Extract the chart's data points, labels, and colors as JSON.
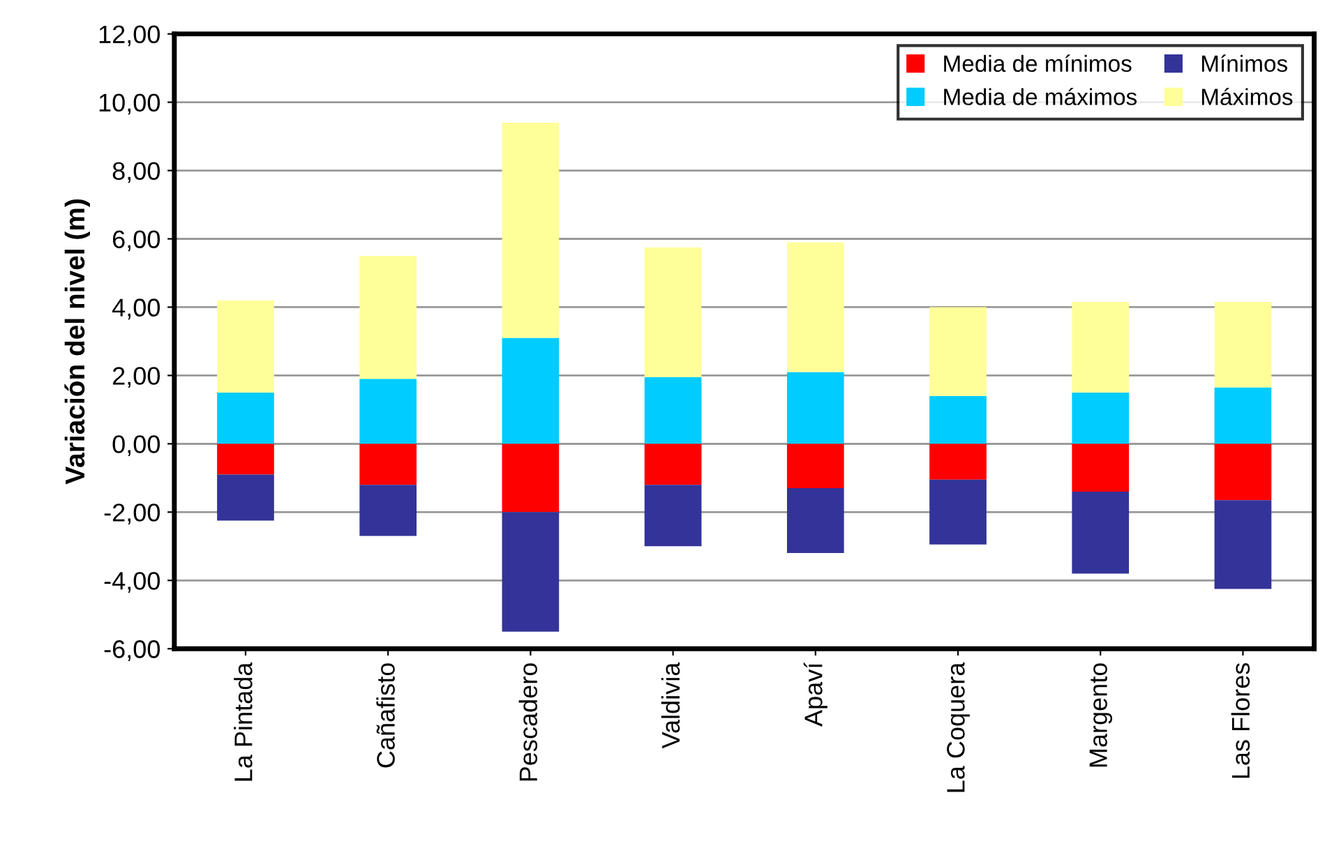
{
  "chart_data": {
    "type": "bar",
    "stacked": true,
    "ylabel": "Variación del nivel (m)",
    "categories": [
      "La Pintada",
      "Cañafisto",
      "Pescadero",
      "Valdivia",
      "Apaví",
      "La Coquera",
      "Margento",
      "Las Flores"
    ],
    "series": [
      {
        "name": "Media de mínimos",
        "color": "#ff0000",
        "values": [
          -0.9,
          -1.2,
          -2.0,
          -1.2,
          -1.3,
          -1.05,
          -1.4,
          -1.65
        ]
      },
      {
        "name": "Mínimos",
        "color": "#333399",
        "values": [
          -1.35,
          -1.5,
          -3.5,
          -1.8,
          -1.9,
          -1.9,
          -2.4,
          -2.6
        ]
      },
      {
        "name": "Media de máximos",
        "color": "#00ccff",
        "values": [
          1.5,
          1.9,
          3.1,
          1.95,
          2.1,
          1.4,
          1.5,
          1.65
        ]
      },
      {
        "name": "Máximos",
        "color": "#ffff99",
        "values": [
          2.7,
          3.6,
          6.3,
          3.8,
          3.8,
          2.6,
          2.65,
          2.5
        ]
      }
    ],
    "ylim": [
      -6,
      12
    ],
    "yticks": [
      {
        "value": -6,
        "label": "-6,00"
      },
      {
        "value": -4,
        "label": "-4,00"
      },
      {
        "value": -2,
        "label": "-2,00"
      },
      {
        "value": 0,
        "label": "0,00"
      },
      {
        "value": 2,
        "label": "2,00"
      },
      {
        "value": 4,
        "label": "4,00"
      },
      {
        "value": 6,
        "label": "6,00"
      },
      {
        "value": 8,
        "label": "8,00"
      },
      {
        "value": 10,
        "label": "10,00"
      },
      {
        "value": 12,
        "label": "12,00"
      }
    ],
    "grid": "y",
    "legend": "top right"
  }
}
